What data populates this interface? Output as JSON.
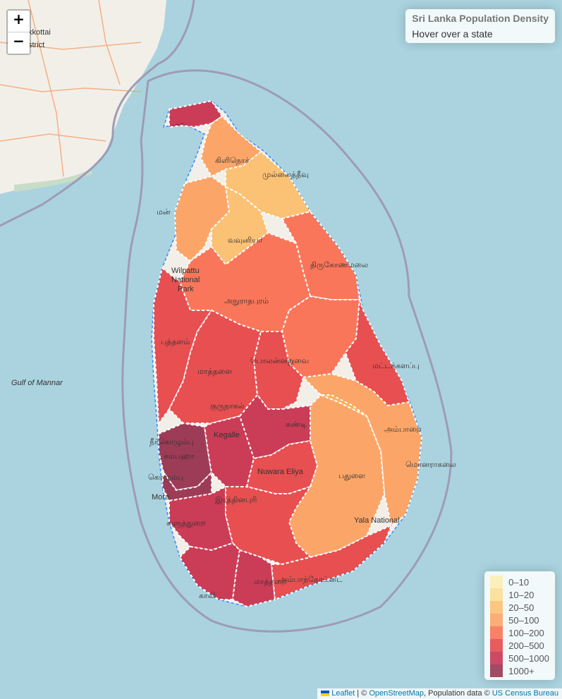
{
  "map": {
    "zoom_in_label": "+",
    "zoom_out_label": "−",
    "base_labels": {
      "sea": "Gulf of Mannar",
      "district_tn": "kkottai",
      "district_tn2": "strict",
      "national_park": "Wilpattu",
      "national_park2": "National",
      "national_park3": "Park",
      "yala": "Yala National",
      "kegalle": "Kegalle",
      "nuwara_eliya": "Nuwara Eliya",
      "moratuwa": "Mora",
      "kilinochchi": "கிளிநொச்",
      "mullaitivu": "முல்லைத்தீவு",
      "mannar": "மன்",
      "vavuniya": "வவுனியா",
      "trincomalee": "திருகோணமலை",
      "anuradhapura": "அநுராதபுரம்",
      "polonnaruwa": "பொலன்னறுவை",
      "puttalam": "புத்தளம்",
      "kurunegala": "குருநாகல்",
      "matale": "மாத்தளை",
      "batticaloa": "மட்டக்களப்பு",
      "ampara": "அம்பாறை",
      "monaragala": "மொனராகலை",
      "badulla": "பதுளை",
      "kandy": "கண்டி",
      "negombo": "நீர்கொழும்பு",
      "colombo": "கொழும்பு",
      "kalutara": "களுத்துறை",
      "ratnapura": "இரத்தினபுரி",
      "galle": "காலி",
      "matara": "மாத்தறை",
      "hambantota": "அம்பாந்தோட்டை",
      "gampaha": "கம்பஹா"
    }
  },
  "info": {
    "title": "Sri Lanka Population Density",
    "hint": "Hover over a state"
  },
  "legend": [
    {
      "label": "0–10",
      "color": "#FFEDA0"
    },
    {
      "label": "10–20",
      "color": "#FED976"
    },
    {
      "label": "20–50",
      "color": "#FEB24C"
    },
    {
      "label": "50–100",
      "color": "#FD8D3C"
    },
    {
      "label": "100–200",
      "color": "#FC4E2A"
    },
    {
      "label": "200–500",
      "color": "#E31A1C"
    },
    {
      "label": "500–1000",
      "color": "#BD0026"
    },
    {
      "label": "1000+",
      "color": "#800026"
    }
  ],
  "attribution": {
    "leaflet": "Leaflet",
    "sep1": " | © ",
    "osm": "OpenStreetMap",
    "sep2": ", Population data © ",
    "census": "US Census Bureau"
  }
}
